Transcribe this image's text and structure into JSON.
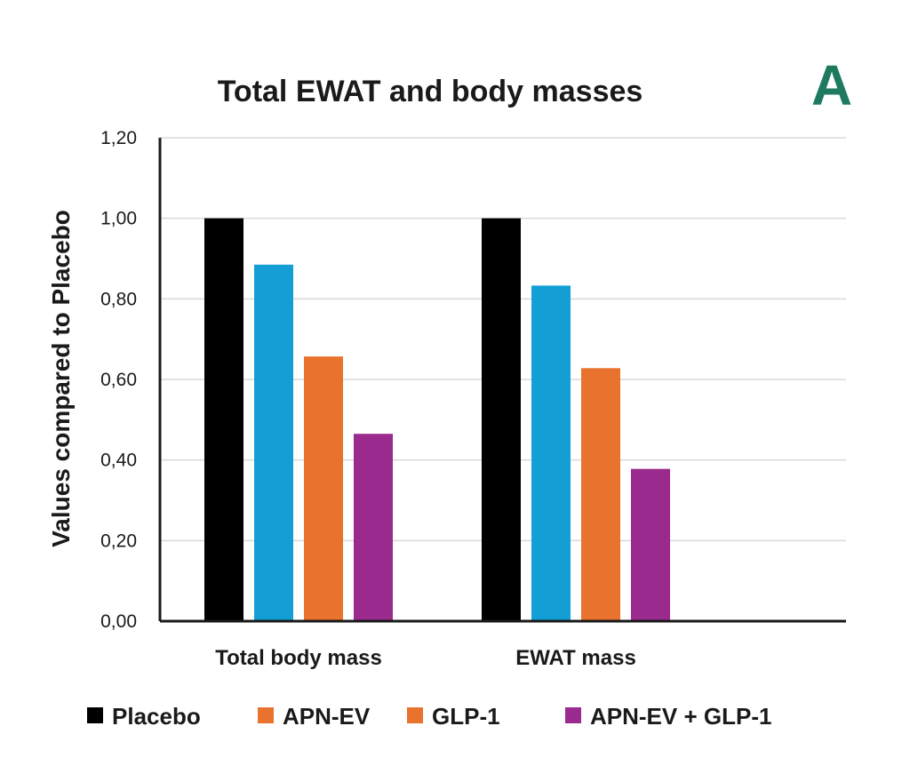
{
  "panel_letter": "A",
  "chart_data": {
    "type": "bar",
    "title": "Total EWAT and body masses",
    "ylabel": "Values compared to Placebo",
    "xlabel": "",
    "ylim": [
      0,
      1.2
    ],
    "yticks": [
      "0,00",
      "0,20",
      "0,40",
      "0,60",
      "0,80",
      "1,00",
      "1,20"
    ],
    "ytick_values": [
      0,
      0.2,
      0.4,
      0.6,
      0.8,
      1.0,
      1.2
    ],
    "categories": [
      "Total body mass",
      "EWAT mass"
    ],
    "series": [
      {
        "name": "Placebo",
        "color": "#000000",
        "values": [
          1.0,
          1.0
        ]
      },
      {
        "name": "APN-EV",
        "color": "#139fd6",
        "legend_color": "#e8722e",
        "values": [
          0.885,
          0.833
        ]
      },
      {
        "name": "GLP-1",
        "color": "#e8722e",
        "values": [
          0.657,
          0.628
        ]
      },
      {
        "name": "APN-EV + GLP-1",
        "color": "#9a2a8e",
        "values": [
          0.465,
          0.378
        ]
      }
    ],
    "grid": true,
    "legend_position": "bottom"
  }
}
